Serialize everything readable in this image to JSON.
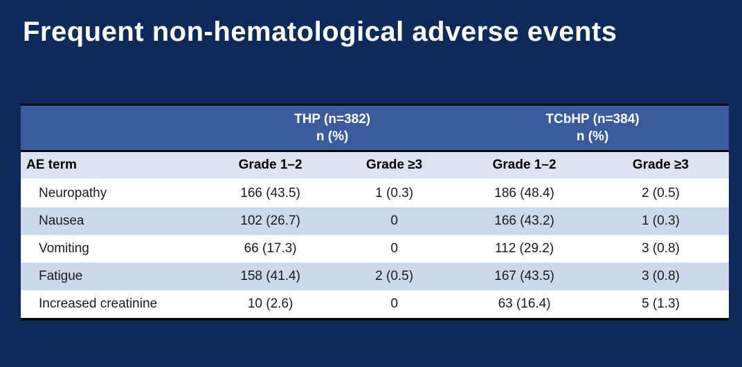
{
  "slide": {
    "title": "Frequent non-hematological adverse events"
  },
  "table": {
    "group_headers": [
      {
        "name": "THP (n=382)",
        "sub": "n (%)"
      },
      {
        "name": "TCbHP (n=384)",
        "sub": "n (%)"
      }
    ],
    "column_headers": [
      "AE term",
      "Grade 1–2",
      "Grade ≥3",
      "Grade 1–2",
      "Grade ≥3"
    ],
    "rows": [
      {
        "term": "Neuropathy",
        "values": [
          "166 (43.5)",
          "1 (0.3)",
          "186 (48.4)",
          "2 (0.5)"
        ]
      },
      {
        "term": "Nausea",
        "values": [
          "102 (26.7)",
          "0",
          "166 (43.2)",
          "1 (0.3)"
        ]
      },
      {
        "term": "Vomiting",
        "values": [
          "66 (17.3)",
          "0",
          "112 (29.2)",
          "3 (0.8)"
        ]
      },
      {
        "term": "Fatigue",
        "values": [
          "158 (41.4)",
          "2 (0.5)",
          "167 (43.5)",
          "3 (0.8)"
        ]
      },
      {
        "term": "Increased creatinine",
        "values": [
          "10 (2.6)",
          "0",
          "63 (16.4)",
          "5 (1.3)"
        ]
      }
    ]
  },
  "colors": {
    "background": "#0d2a5a",
    "group_header_bg": "#3a5c9e",
    "column_header_bg": "#dce3f1",
    "row_alt_bg": "#ccd8ec",
    "row_bg": "#ffffff",
    "border": "#0a0a0a",
    "title_text": "#ffffff"
  }
}
